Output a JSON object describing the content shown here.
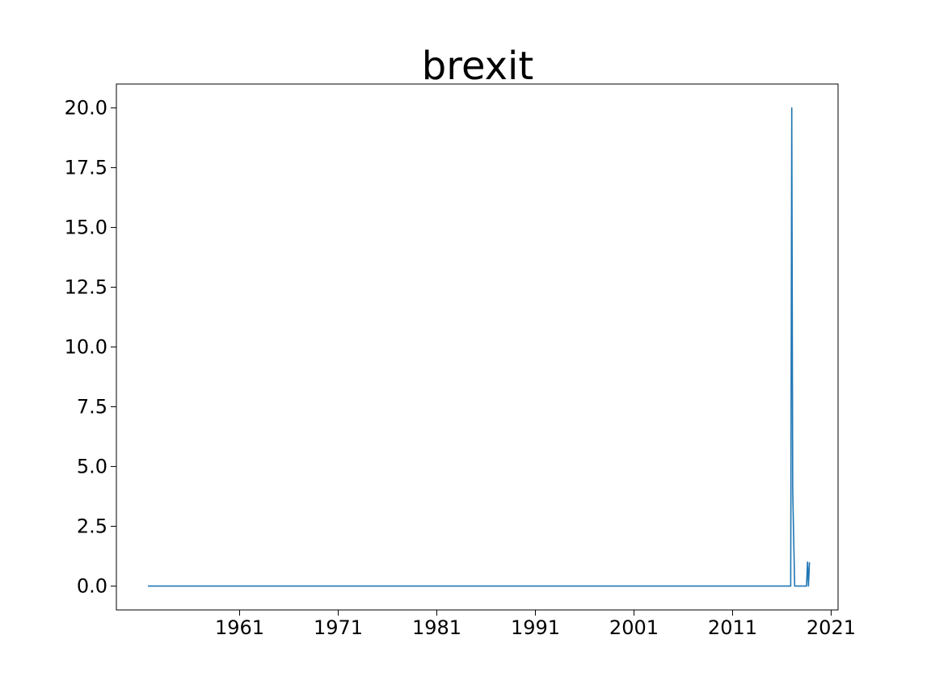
{
  "chart_data": {
    "type": "line",
    "title": "brexit",
    "xlabel": "",
    "ylabel": "",
    "xlim": [
      1948.5,
      2021.7
    ],
    "ylim": [
      -1.0,
      21.0
    ],
    "x_ticks": [
      1961,
      1971,
      1981,
      1991,
      2001,
      2011,
      2021
    ],
    "y_ticks": [
      0.0,
      2.5,
      5.0,
      7.5,
      10.0,
      12.5,
      15.0,
      17.5,
      20.0
    ],
    "x_tick_labels": [
      "1961",
      "1971",
      "1981",
      "1991",
      "2001",
      "2011",
      "2021"
    ],
    "y_tick_labels": [
      "0.0",
      "2.5",
      "5.0",
      "7.5",
      "10.0",
      "12.5",
      "15.0",
      "17.5",
      "20.0"
    ],
    "grid": false,
    "series": [
      {
        "color": "#1f77b4",
        "x": [
          1951.7,
          2016.9,
          2017.0,
          2017.1,
          2017.3,
          2018.5,
          2018.6,
          2018.7,
          2018.8
        ],
        "y": [
          0,
          0,
          20,
          4,
          0,
          0,
          1,
          0,
          1
        ]
      }
    ]
  }
}
